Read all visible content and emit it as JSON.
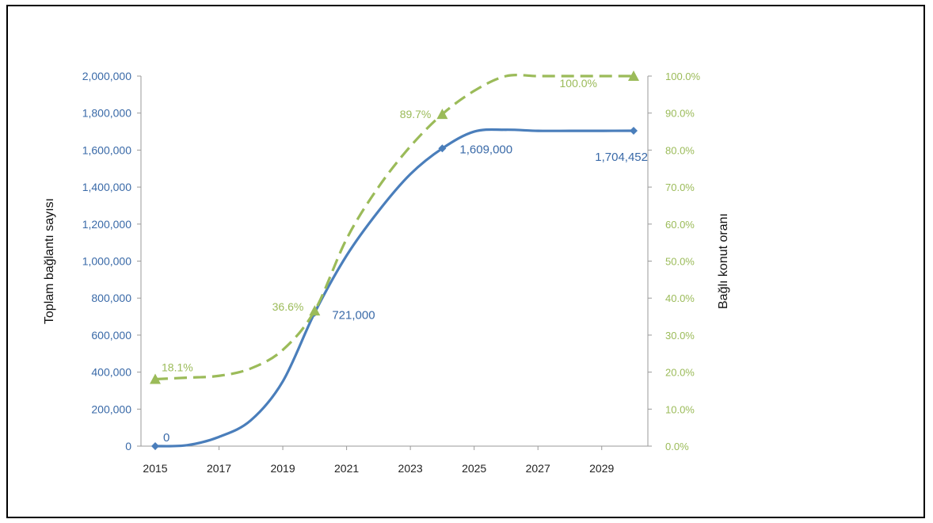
{
  "chart_data": {
    "type": "line",
    "title": "",
    "xlabel": "",
    "ylabel": "Toplam bağlantı sayısı",
    "y2label": "Bağlı konut oranı",
    "xlim": [
      2015,
      2030
    ],
    "ylim": [
      0,
      2000000
    ],
    "y2lim": [
      0,
      100
    ],
    "x_ticks": [
      "2015",
      "2017",
      "2019",
      "2021",
      "2023",
      "2025",
      "2027",
      "2029"
    ],
    "y_ticks": [
      "0",
      "200,000",
      "400,000",
      "600,000",
      "800,000",
      "1,000,000",
      "1,200,000",
      "1,400,000",
      "1,600,000",
      "1,800,000",
      "2,000,000"
    ],
    "y2_ticks": [
      "0.0%",
      "10.0%",
      "20.0%",
      "30.0%",
      "40.0%",
      "50.0%",
      "60.0%",
      "70.0%",
      "80.0%",
      "90.0%",
      "100.0%"
    ],
    "grid": false,
    "series": [
      {
        "axis": "left",
        "color": "#4a7ebb",
        "style": "solid",
        "marker": "diamond",
        "x": [
          2015,
          2016,
          2017,
          2018,
          2019,
          2020,
          2021,
          2022,
          2023,
          2024,
          2025,
          2026,
          2027,
          2028,
          2029,
          2030
        ],
        "values": [
          0,
          5000,
          50000,
          140000,
          350000,
          721000,
          1030000,
          1270000,
          1470000,
          1609000,
          1700000,
          1710000,
          1704000,
          1704000,
          1704000,
          1704452
        ]
      },
      {
        "axis": "right",
        "color": "#9bbb59",
        "style": "dashed",
        "marker": "triangle",
        "x": [
          2015,
          2016,
          2017,
          2018,
          2019,
          2020,
          2021,
          2022,
          2023,
          2024,
          2025,
          2026,
          2027,
          2028,
          2029,
          2030
        ],
        "values": [
          18.1,
          18.5,
          19,
          21,
          26,
          36.6,
          56,
          70,
          81,
          89.7,
          96,
          100,
          100,
          100,
          100,
          100
        ]
      }
    ],
    "annotations": [
      {
        "axis": "left",
        "x": 2015,
        "y": 0,
        "text": "0"
      },
      {
        "axis": "left",
        "x": 2020,
        "y": 721000,
        "text": "721,000"
      },
      {
        "axis": "left",
        "x": 2024,
        "y": 1609000,
        "text": "1,609,000"
      },
      {
        "axis": "left",
        "x": 2030,
        "y": 1704452,
        "text": "1,704,452"
      },
      {
        "axis": "right",
        "x": 2015,
        "y": 18.1,
        "text": "18.1%"
      },
      {
        "axis": "right",
        "x": 2020,
        "y": 36.6,
        "text": "36.6%"
      },
      {
        "axis": "right",
        "x": 2024,
        "y": 89.7,
        "text": "89.7%"
      },
      {
        "axis": "right",
        "x": 2030,
        "y": 100,
        "text": "100.0%"
      }
    ]
  }
}
